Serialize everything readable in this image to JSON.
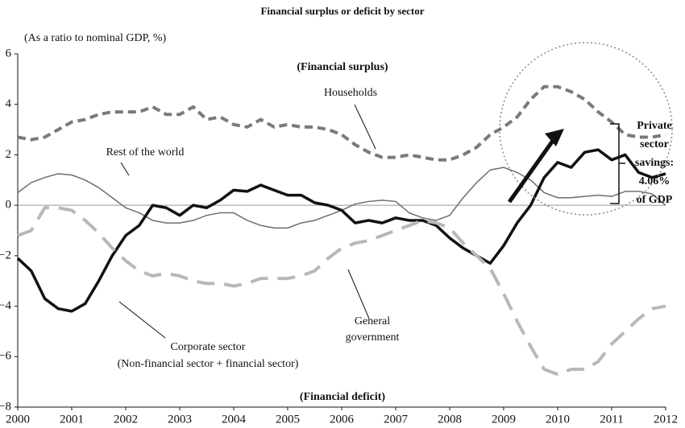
{
  "chart_data": {
    "type": "line",
    "title": "Financial surplus or deficit by sector",
    "y_axis_label": "(As a ratio to nominal GDP, %)",
    "annotations": [
      "(Financial surplus)",
      "(Financial deficit)",
      "Households",
      "Rest of the world",
      "Corporate sector",
      "(Non-financial sector + financial sector)",
      "General government",
      "Private",
      "sector",
      "savings:",
      "4.06%",
      "of GDP"
    ],
    "x": [
      2000,
      2000.25,
      2000.5,
      2000.75,
      2001,
      2001.25,
      2001.5,
      2001.75,
      2002,
      2002.25,
      2002.5,
      2002.75,
      2003,
      2003.25,
      2003.5,
      2003.75,
      2004,
      2004.25,
      2004.5,
      2004.75,
      2005,
      2005.25,
      2005.5,
      2005.75,
      2006,
      2006.25,
      2006.5,
      2006.75,
      2007,
      2007.25,
      2007.5,
      2007.75,
      2008,
      2008.25,
      2008.5,
      2008.75,
      2009,
      2009.25,
      2009.5,
      2009.75,
      2010,
      2010.25,
      2010.5,
      2010.75,
      2011,
      2011.25,
      2011.5,
      2011.75,
      2012
    ],
    "xlim": [
      2000,
      2012
    ],
    "xticks": [
      2000,
      2001,
      2002,
      2003,
      2004,
      2005,
      2006,
      2007,
      2008,
      2009,
      2010,
      2011,
      2012
    ],
    "ylim": [
      -8,
      6
    ],
    "yticks": [
      {
        "value": -8,
        "label": "−8"
      },
      {
        "value": -6,
        "label": "−6"
      },
      {
        "value": -4,
        "label": "−4"
      },
      {
        "value": -2,
        "label": "−2"
      },
      0,
      2,
      4,
      6
    ],
    "series": [
      {
        "name": "Households",
        "color": "#7a7a7a",
        "values": [
          2.7,
          2.6,
          2.7,
          3.0,
          3.3,
          3.4,
          3.6,
          3.7,
          3.7,
          3.7,
          3.9,
          3.6,
          3.6,
          3.9,
          3.4,
          3.5,
          3.2,
          3.1,
          3.4,
          3.1,
          3.2,
          3.1,
          3.1,
          3.0,
          2.8,
          2.4,
          2.1,
          1.9,
          1.9,
          2.0,
          1.9,
          1.8,
          1.8,
          2.0,
          2.3,
          2.8,
          3.1,
          3.5,
          4.2,
          4.7,
          4.7,
          4.5,
          4.2,
          3.7,
          3.3,
          2.8,
          2.7,
          2.7,
          2.8
        ]
      },
      {
        "name": "Rest of the world",
        "color": "#6e6e6e",
        "values": [
          0.5,
          0.9,
          1.1,
          1.25,
          1.2,
          1.0,
          0.7,
          0.3,
          -0.1,
          -0.3,
          -0.6,
          -0.7,
          -0.7,
          -0.6,
          -0.4,
          -0.3,
          -0.3,
          -0.6,
          -0.8,
          -0.9,
          -0.9,
          -0.7,
          -0.6,
          -0.4,
          -0.2,
          0.05,
          0.15,
          0.2,
          0.15,
          -0.3,
          -0.5,
          -0.6,
          -0.4,
          0.3,
          0.9,
          1.4,
          1.5,
          1.3,
          1.0,
          0.5,
          0.3,
          0.3,
          0.35,
          0.4,
          0.35,
          0.55,
          0.55,
          0.45,
          0.0
        ]
      },
      {
        "name": "Corporate sector",
        "color": "#111111",
        "values": [
          -2.1,
          -2.6,
          -3.7,
          -4.1,
          -4.2,
          -3.9,
          -3.0,
          -2.0,
          -1.2,
          -0.8,
          0.0,
          -0.1,
          -0.4,
          0.0,
          -0.1,
          0.2,
          0.6,
          0.55,
          0.8,
          0.6,
          0.4,
          0.4,
          0.1,
          0.0,
          -0.2,
          -0.7,
          -0.6,
          -0.7,
          -0.5,
          -0.6,
          -0.6,
          -0.8,
          -1.3,
          -1.7,
          -2.0,
          -2.3,
          -1.6,
          -0.7,
          0.0,
          1.1,
          1.7,
          1.5,
          2.1,
          2.2,
          1.8,
          2.0,
          1.3,
          1.1,
          1.25
        ]
      },
      {
        "name": "General government",
        "color": "#b8b8b8",
        "values": [
          -1.2,
          -1.0,
          -0.1,
          -0.1,
          -0.2,
          -0.6,
          -1.1,
          -1.7,
          -2.2,
          -2.6,
          -2.8,
          -2.7,
          -2.8,
          -3.0,
          -3.1,
          -3.1,
          -3.2,
          -3.1,
          -2.9,
          -2.9,
          -2.9,
          -2.8,
          -2.6,
          -2.1,
          -1.7,
          -1.5,
          -1.4,
          -1.2,
          -1.0,
          -0.8,
          -0.6,
          -0.7,
          -0.9,
          -1.5,
          -2.0,
          -2.5,
          -3.5,
          -4.6,
          -5.6,
          -6.5,
          -6.7,
          -6.5,
          -6.5,
          -6.2,
          -5.5,
          -5.0,
          -4.5,
          -4.1,
          -4.0
        ]
      }
    ]
  }
}
